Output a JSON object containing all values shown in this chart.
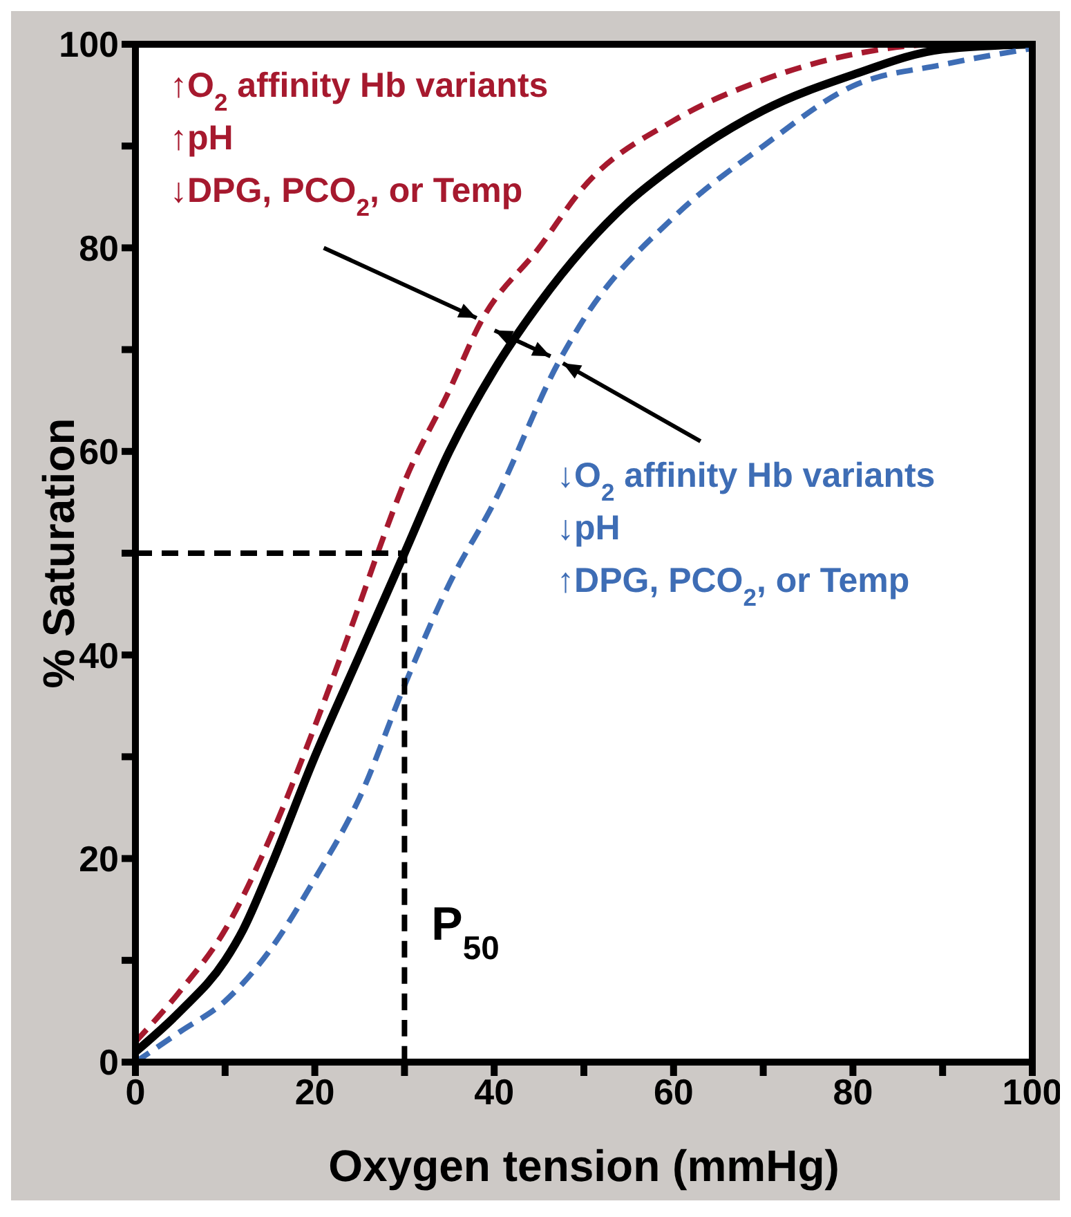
{
  "chart_data": {
    "type": "line",
    "xlabel": "Oxygen tension (mmHg)",
    "ylabel": "% Saturation",
    "xlim": [
      0,
      100
    ],
    "ylim": [
      0,
      100
    ],
    "xticks": [
      0,
      {
        "value": 10,
        "label": null
      },
      20,
      {
        "value": 30,
        "label": null
      },
      40,
      {
        "value": 50,
        "label": null
      },
      60,
      {
        "value": 70,
        "label": null
      },
      80,
      {
        "value": 90,
        "label": null
      },
      100
    ],
    "yticks": [
      0,
      {
        "value": 10,
        "label": null
      },
      20,
      {
        "value": 30,
        "label": null
      },
      40,
      {
        "value": 50,
        "label": null
      },
      60,
      {
        "value": 70,
        "label": null
      },
      80,
      {
        "value": 90,
        "label": null
      },
      100
    ],
    "marker": "none",
    "series": [
      {
        "color": "#a6192e",
        "line_style": "dashed",
        "x": [
          0,
          5,
          10,
          15,
          20,
          25,
          27,
          30,
          35,
          38.5,
          45,
          50,
          60,
          70,
          80,
          90,
          100
        ],
        "values": [
          2,
          7,
          13,
          22,
          33,
          45,
          50,
          57,
          66,
          72.7,
          80,
          86,
          92.5,
          96.5,
          99,
          100,
          100
        ]
      },
      {
        "color": "#000000",
        "line_style": "solid",
        "x": [
          0,
          5,
          10,
          12,
          15,
          20,
          25,
          30,
          35,
          40,
          45,
          50,
          55,
          60,
          70,
          80,
          90,
          100
        ],
        "values": [
          1,
          5,
          10,
          13,
          19,
          30,
          40,
          50,
          60,
          68,
          74.5,
          80,
          84.5,
          88,
          93.5,
          97,
          99.5,
          100
        ]
      },
      {
        "color": "#3e6db5",
        "line_style": "dashed",
        "x": [
          0,
          5,
          10,
          15,
          20,
          25,
          30,
          35,
          40,
          47.2,
          50,
          60,
          70,
          80,
          90,
          100
        ],
        "values": [
          0,
          3,
          6,
          11,
          18,
          26,
          37,
          47,
          55,
          68.8,
          73,
          83,
          90,
          95.9,
          98,
          99.6
        ]
      },
      {
        "color": "#000000",
        "line_style": "dashed",
        "x": [
          0,
          30,
          30
        ],
        "values": [
          50,
          50,
          0
        ]
      }
    ],
    "annotations": [
      {
        "text": "↑O$_{2}$ affinity Hb variants\n↑pH\n↓DPG, PCO$_{2}$, or Temp",
        "x": 38.5,
        "y": 72.7
      },
      {
        "text": "↓O$_{2}$ affinity Hb variants\n↓pH\n↑DPG, PCO$_{2}$, or Temp",
        "x": 47.2,
        "y": 68.8
      },
      "P$_{50}$"
    ]
  }
}
